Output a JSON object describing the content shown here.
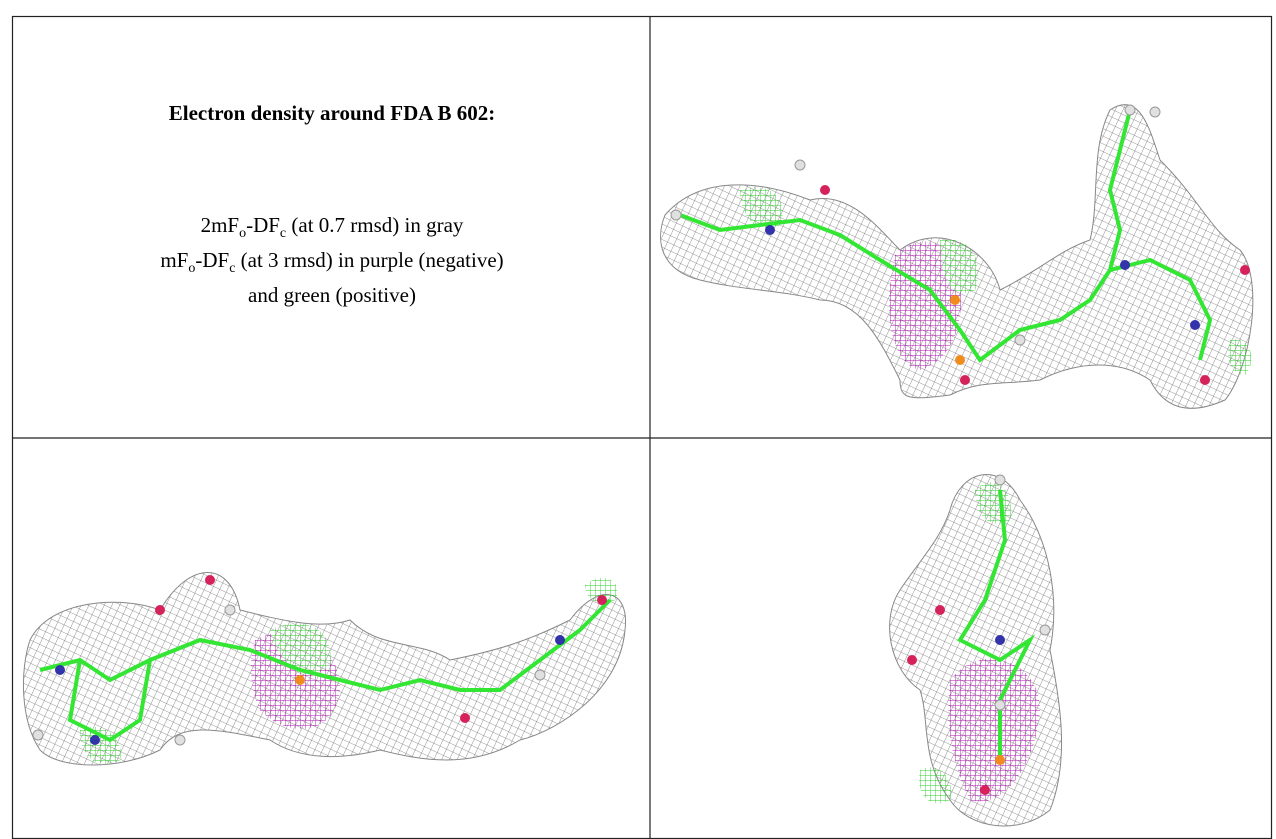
{
  "panel": {
    "title": "Electron density around FDA B 602:",
    "lines": [
      [
        "2mF",
        "o",
        "-DF",
        "c",
        " (at 0.7 rmsd) in gray"
      ],
      [
        "mF",
        "o",
        "-DF",
        "c",
        " (at 3 rmsd) in purple (negative)"
      ],
      [
        "and green (positive)"
      ]
    ]
  }
}
